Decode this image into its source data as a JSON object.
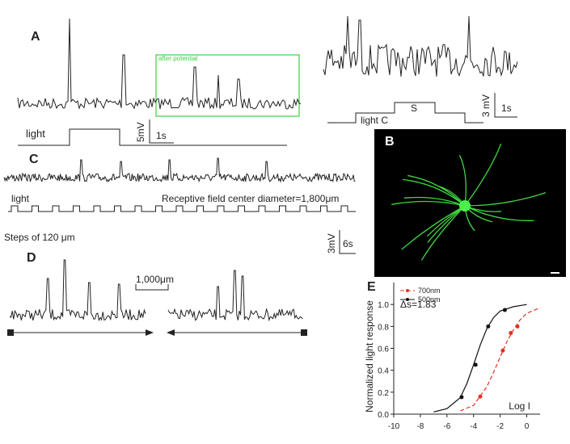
{
  "panels": {
    "A": {
      "label": "A",
      "stim_label": "light",
      "scale_y": "5mV",
      "scale_x": "1s",
      "annotation": "after potential",
      "inset_stim_label": "light C",
      "inset_stim_label_2": "S",
      "inset_scale_y": "3 mV",
      "inset_scale_x": "1s"
    },
    "B": {
      "label": "B"
    },
    "C": {
      "label": "C",
      "stim_label": "light",
      "annotation": "Receptive field center diameter=1,800μm",
      "steps": "Steps of 120 μm",
      "scale_y": "3mV",
      "scale_x": "6s"
    },
    "D": {
      "label": "D",
      "scale": "1,000μm"
    }
  },
  "chart_data": {
    "type": "line",
    "label": "E",
    "y_label": "Normalized light response",
    "x_label": "Log I",
    "annotation": "Δs=1.83",
    "xlim": [
      -10,
      1
    ],
    "xticks": [
      -10,
      -8,
      -6,
      -4,
      -2,
      0
    ],
    "ylim": [
      0,
      1.2
    ],
    "yticks": [
      {
        "value": 0,
        "label": "0.0"
      },
      0.2,
      0.4,
      0.6,
      0.8,
      {
        "value": 1,
        "label": "1.0"
      }
    ],
    "series": [
      {
        "name": "700nm",
        "color": "#e0321e",
        "dashed": true,
        "x": [
          -3.5,
          -1.8,
          -1.2,
          -0.7
        ],
        "values": [
          0.16,
          0.58,
          0.74,
          0.8
        ],
        "fit_x": [
          -5,
          -4,
          -3,
          -2.5,
          -2,
          -1.5,
          -1,
          -0.5,
          0,
          1
        ],
        "fit_values": [
          0.03,
          0.08,
          0.25,
          0.38,
          0.52,
          0.66,
          0.77,
          0.86,
          0.92,
          0.97
        ]
      },
      {
        "name": "500nm",
        "color": "#111111",
        "dashed": false,
        "x": [
          -4.9,
          -3.85,
          -2.9,
          -1.65
        ],
        "values": [
          0.155,
          0.45,
          0.8,
          0.95
        ],
        "fit_x": [
          -7,
          -6,
          -5,
          -4.5,
          -4,
          -3.5,
          -3,
          -2.5,
          -2,
          -1,
          0
        ],
        "fit_values": [
          0.02,
          0.05,
          0.15,
          0.28,
          0.45,
          0.63,
          0.78,
          0.88,
          0.94,
          0.98,
          1.0
        ]
      }
    ]
  }
}
